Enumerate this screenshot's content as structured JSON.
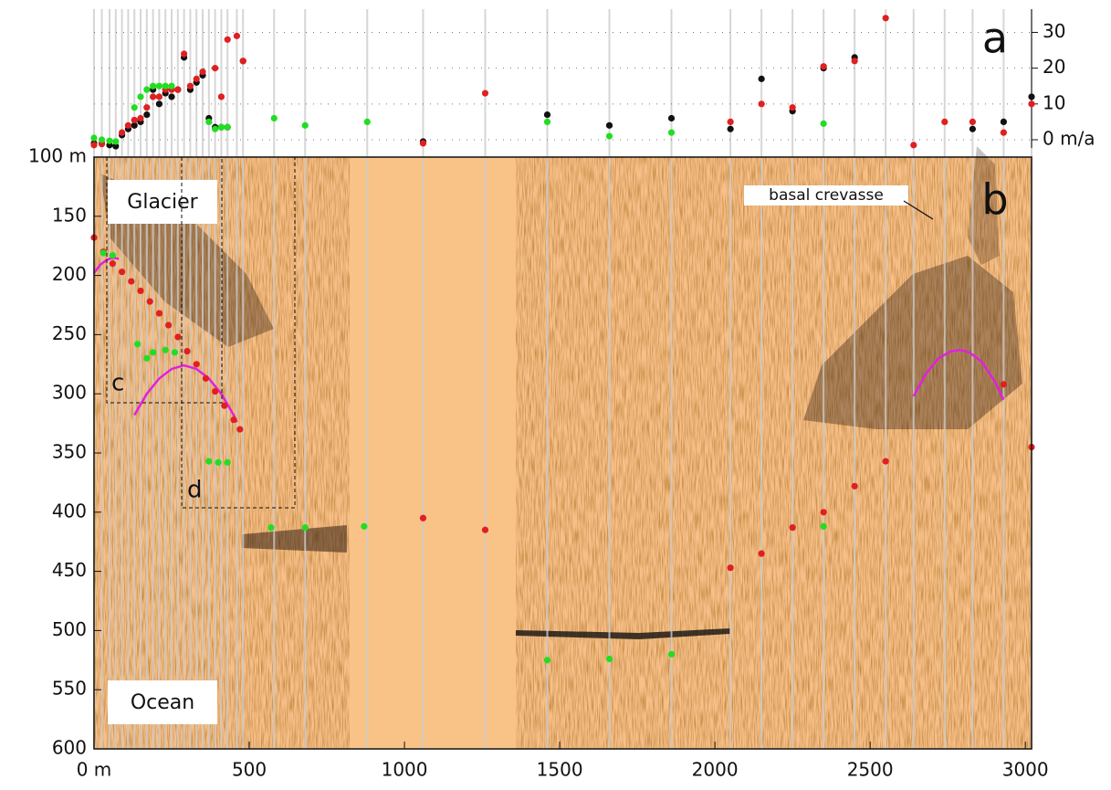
{
  "chart_data": [
    {
      "type": "scatter",
      "panel_label": "a",
      "xlim": [
        0,
        3020
      ],
      "ylim": [
        -2.3,
        36.5
      ],
      "yticks": [
        {
          "value": 0,
          "label": "0 m/a"
        },
        10,
        20,
        30
      ],
      "grid": true,
      "series": [
        {
          "color": "#111111",
          "x": [
            0,
            25,
            50,
            70,
            90,
            110,
            130,
            150,
            170,
            190,
            210,
            230,
            250,
            270,
            290,
            310,
            330,
            350,
            370,
            390,
            410,
            430,
            480,
            1060,
            1460,
            1660,
            1860,
            2050,
            2150,
            2250,
            2350,
            2450,
            2830,
            2930,
            3020
          ],
          "y": [
            -1,
            -1,
            -1.5,
            -1.8,
            1.3,
            3,
            4,
            5,
            7,
            14,
            10,
            13,
            12,
            14,
            23,
            14,
            16,
            18,
            6,
            3.5,
            3.5,
            3.5,
            22,
            -0.5,
            7,
            4,
            6,
            3,
            17,
            8,
            20,
            23,
            3,
            5,
            12
          ]
        },
        {
          "color": "#e02020",
          "x": [
            0,
            25,
            90,
            110,
            130,
            150,
            170,
            190,
            210,
            230,
            250,
            270,
            290,
            310,
            330,
            350,
            390,
            410,
            430,
            460,
            480,
            1060,
            1260,
            2050,
            2150,
            2250,
            2350,
            2450,
            2550,
            2640,
            2740,
            2830,
            2930,
            3020
          ],
          "y": [
            -1.5,
            -1.2,
            2,
            4,
            5.5,
            6,
            9,
            12,
            12,
            14,
            14,
            14,
            24,
            15,
            17,
            19,
            20,
            12,
            28,
            29,
            22,
            -1,
            13,
            5,
            10,
            9,
            20.5,
            22,
            34,
            -1.5,
            5,
            5,
            2,
            10
          ]
        },
        {
          "color": "#22dd22",
          "x": [
            0,
            25,
            50,
            70,
            130,
            150,
            170,
            190,
            210,
            230,
            250,
            370,
            390,
            410,
            430,
            580,
            680,
            880,
            1460,
            1660,
            1860,
            2350
          ],
          "y": [
            0.5,
            0,
            -0.3,
            -0.5,
            9,
            12,
            14,
            15,
            15,
            15,
            15,
            5,
            3,
            3.5,
            3.5,
            6,
            4,
            5,
            5,
            1,
            2,
            4.5
          ]
        }
      ]
    },
    {
      "type": "radargram",
      "panel_label": "b",
      "xlim": [
        0,
        3020
      ],
      "ylim": [
        600,
        100
      ],
      "xticks": [
        {
          "value": 0,
          "label": "0 m"
        },
        500,
        1000,
        1500,
        2000,
        2500,
        3000
      ],
      "yticks": [
        {
          "value": 100,
          "label": "100 m"
        },
        150,
        200,
        250,
        300,
        350,
        400,
        450,
        500,
        550,
        600
      ],
      "traces": [
        0,
        25,
        50,
        70,
        90,
        110,
        130,
        150,
        170,
        190,
        210,
        230,
        250,
        270,
        290,
        310,
        330,
        350,
        370,
        390,
        410,
        430,
        460,
        480,
        580,
        680,
        880,
        1060,
        1260,
        1460,
        1660,
        1860,
        2050,
        2150,
        2250,
        2350,
        2450,
        2550,
        2640,
        2740,
        2830,
        2930,
        3020
      ],
      "annotations": [
        "Glacier",
        "Ocean",
        "basal crevasse",
        "c",
        "d"
      ],
      "series": [
        {
          "color": "#e02020",
          "x": [
            0,
            30,
            60,
            90,
            120,
            150,
            180,
            210,
            240,
            270,
            300,
            330,
            360,
            390,
            420,
            450,
            470,
            1060,
            1260,
            2050,
            2150,
            2250,
            2350,
            2450,
            2550,
            2930,
            3020
          ],
          "y": [
            168,
            180,
            190,
            197,
            205,
            213,
            222,
            232,
            242,
            252,
            264,
            275,
            287,
            298,
            310,
            322,
            330,
            405,
            415,
            447,
            435,
            413,
            400,
            378,
            357,
            292,
            345
          ]
        },
        {
          "color": "#22dd22",
          "x": [
            30,
            60,
            140,
            170,
            190,
            230,
            260,
            370,
            400,
            430,
            570,
            680,
            870,
            1460,
            1660,
            1860,
            2350
          ],
          "y": [
            181,
            183,
            258,
            270,
            265,
            263,
            265,
            357,
            358,
            358,
            413,
            413,
            412,
            525,
            524,
            520,
            412
          ]
        }
      ],
      "curves": [
        {
          "color": "#e020e0",
          "x": [
            0,
            20,
            40,
            60,
            80
          ],
          "y": [
            198,
            191,
            187,
            185,
            186
          ]
        },
        {
          "color": "#e020e0",
          "x": [
            130,
            170,
            210,
            250,
            290,
            330,
            370,
            410,
            450,
            460
          ],
          "y": [
            318,
            300,
            287,
            279,
            276,
            279,
            287,
            300,
            318,
            324
          ]
        },
        {
          "color": "#e020e0",
          "x": [
            2640,
            2680,
            2720,
            2760,
            2790,
            2820,
            2860,
            2900,
            2930
          ],
          "y": [
            302,
            283,
            270,
            264,
            263,
            265,
            273,
            289,
            305
          ]
        }
      ]
    }
  ]
}
